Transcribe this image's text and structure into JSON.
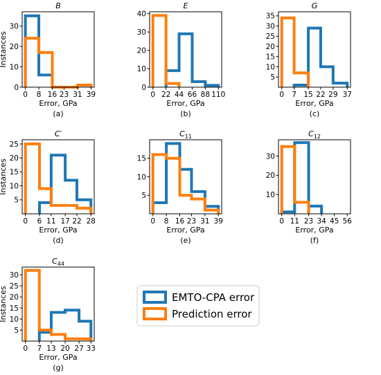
{
  "legend": {
    "placement": "lower-right",
    "entries": [
      {
        "label": "EMTO-CPA error",
        "color": "#1f77b4"
      },
      {
        "label": "Prediction error",
        "color": "#ff7f0e"
      }
    ]
  },
  "chart_data": [
    {
      "type": "histogram",
      "panel": "(a)",
      "title": "B",
      "xlabel": "Error, GPa",
      "ylabel": "Instances",
      "xticks": [
        0,
        8,
        16,
        23,
        31,
        39
      ],
      "yticks": [
        0,
        10,
        20,
        30
      ],
      "xlim": [
        -1.9,
        40.9
      ],
      "ylim": [
        0,
        37
      ],
      "series": [
        {
          "name": "EMTO-CPA error",
          "color": "#1f77b4",
          "bins": [
            {
              "x0": 0,
              "x1": 8,
              "count": 35
            },
            {
              "x0": 8,
              "x1": 16,
              "count": 6
            },
            {
              "x0": 16,
              "x1": 23,
              "count": 0
            },
            {
              "x0": 23,
              "x1": 31,
              "count": 0
            },
            {
              "x0": 31,
              "x1": 39,
              "count": 0
            }
          ]
        },
        {
          "name": "Prediction error",
          "color": "#ff7f0e",
          "bins": [
            {
              "x0": 0,
              "x1": 8,
              "count": 24
            },
            {
              "x0": 8,
              "x1": 16,
              "count": 17
            },
            {
              "x0": 16,
              "x1": 23,
              "count": 0
            },
            {
              "x0": 23,
              "x1": 31,
              "count": 0
            },
            {
              "x0": 31,
              "x1": 39,
              "count": 1
            }
          ]
        }
      ]
    },
    {
      "type": "histogram",
      "panel": "(b)",
      "title": "E",
      "xlabel": "Error, GPa",
      "ylabel": "",
      "xticks": [
        0,
        22,
        44,
        66,
        88,
        110
      ],
      "yticks": [
        0,
        10,
        20,
        30,
        40
      ],
      "xlim": [
        -5.5,
        115.5
      ],
      "ylim": [
        0,
        41
      ],
      "series": [
        {
          "name": "EMTO-CPA error",
          "color": "#1f77b4",
          "bins": [
            {
              "x0": 0,
              "x1": 22,
              "count": 0
            },
            {
              "x0": 22,
              "x1": 44,
              "count": 9
            },
            {
              "x0": 44,
              "x1": 66,
              "count": 29
            },
            {
              "x0": 66,
              "x1": 88,
              "count": 3
            },
            {
              "x0": 88,
              "x1": 110,
              "count": 1
            }
          ]
        },
        {
          "name": "Prediction error",
          "color": "#ff7f0e",
          "bins": [
            {
              "x0": 0,
              "x1": 22,
              "count": 39
            },
            {
              "x0": 22,
              "x1": 44,
              "count": 2
            },
            {
              "x0": 44,
              "x1": 66,
              "count": 0
            },
            {
              "x0": 66,
              "x1": 88,
              "count": 0
            },
            {
              "x0": 88,
              "x1": 110,
              "count": 0
            }
          ]
        }
      ]
    },
    {
      "type": "histogram",
      "panel": "(c)",
      "title": "G",
      "xlabel": "Error, GPa",
      "ylabel": "",
      "xticks": [
        0,
        7,
        15,
        22,
        29,
        37
      ],
      "yticks": [
        5,
        10,
        15,
        20,
        25,
        30,
        35
      ],
      "xlim": [
        -1.85,
        38.85
      ],
      "ylim": [
        0,
        37
      ],
      "series": [
        {
          "name": "EMTO-CPA error",
          "color": "#1f77b4",
          "bins": [
            {
              "x0": 0,
              "x1": 7,
              "count": 0
            },
            {
              "x0": 7,
              "x1": 15,
              "count": 1
            },
            {
              "x0": 15,
              "x1": 22,
              "count": 29
            },
            {
              "x0": 22,
              "x1": 29,
              "count": 10
            },
            {
              "x0": 29,
              "x1": 37,
              "count": 2
            }
          ]
        },
        {
          "name": "Prediction error",
          "color": "#ff7f0e",
          "bins": [
            {
              "x0": 0,
              "x1": 7,
              "count": 34
            },
            {
              "x0": 7,
              "x1": 15,
              "count": 7
            },
            {
              "x0": 15,
              "x1": 22,
              "count": 0
            },
            {
              "x0": 22,
              "x1": 29,
              "count": 0
            },
            {
              "x0": 29,
              "x1": 37,
              "count": 0
            }
          ]
        }
      ]
    },
    {
      "type": "histogram",
      "panel": "(d)",
      "title": "C′",
      "xlabel": "Error, GPa",
      "ylabel": "Instances",
      "xticks": [
        0,
        6,
        11,
        17,
        22,
        28
      ],
      "yticks": [
        5,
        10,
        15,
        20,
        25
      ],
      "xlim": [
        -1.4,
        29.4
      ],
      "ylim": [
        0,
        26.5
      ],
      "series": [
        {
          "name": "EMTO-CPA error",
          "color": "#1f77b4",
          "bins": [
            {
              "x0": 0,
              "x1": 6,
              "count": 0
            },
            {
              "x0": 6,
              "x1": 11,
              "count": 4
            },
            {
              "x0": 11,
              "x1": 17,
              "count": 21
            },
            {
              "x0": 17,
              "x1": 22,
              "count": 12
            },
            {
              "x0": 22,
              "x1": 28,
              "count": 5
            }
          ]
        },
        {
          "name": "Prediction error",
          "color": "#ff7f0e",
          "bins": [
            {
              "x0": 0,
              "x1": 6,
              "count": 25
            },
            {
              "x0": 6,
              "x1": 11,
              "count": 9
            },
            {
              "x0": 11,
              "x1": 17,
              "count": 3
            },
            {
              "x0": 17,
              "x1": 22,
              "count": 3
            },
            {
              "x0": 22,
              "x1": 28,
              "count": 2
            }
          ]
        }
      ]
    },
    {
      "type": "histogram",
      "panel": "(e)",
      "title": "C11",
      "xlabel": "Error, GPa",
      "ylabel": "",
      "xticks": [
        0,
        8,
        16,
        23,
        31,
        39
      ],
      "yticks": [
        5,
        10,
        15
      ],
      "xlim": [
        -1.95,
        40.95
      ],
      "ylim": [
        0,
        20
      ],
      "series": [
        {
          "name": "EMTO-CPA error",
          "color": "#1f77b4",
          "bins": [
            {
              "x0": 0,
              "x1": 8,
              "count": 3
            },
            {
              "x0": 8,
              "x1": 16,
              "count": 19
            },
            {
              "x0": 16,
              "x1": 23,
              "count": 12
            },
            {
              "x0": 23,
              "x1": 31,
              "count": 6
            },
            {
              "x0": 31,
              "x1": 39,
              "count": 2
            }
          ]
        },
        {
          "name": "Prediction error",
          "color": "#ff7f0e",
          "bins": [
            {
              "x0": 0,
              "x1": 8,
              "count": 16
            },
            {
              "x0": 8,
              "x1": 16,
              "count": 15
            },
            {
              "x0": 16,
              "x1": 23,
              "count": 5
            },
            {
              "x0": 23,
              "x1": 31,
              "count": 4
            },
            {
              "x0": 31,
              "x1": 39,
              "count": 1
            }
          ]
        }
      ]
    },
    {
      "type": "histogram",
      "panel": "(f)",
      "title": "C12",
      "xlabel": "Error, GPa",
      "ylabel": "",
      "xticks": [
        0,
        11,
        23,
        34,
        45,
        56
      ],
      "yticks": [
        10,
        20,
        30
      ],
      "xlim": [
        -2.8,
        58.8
      ],
      "ylim": [
        0,
        38.5
      ],
      "series": [
        {
          "name": "EMTO-CPA error",
          "color": "#1f77b4",
          "bins": [
            {
              "x0": 0,
              "x1": 11,
              "count": 1
            },
            {
              "x0": 11,
              "x1": 23,
              "count": 37
            },
            {
              "x0": 23,
              "x1": 34,
              "count": 4
            },
            {
              "x0": 34,
              "x1": 45,
              "count": 0
            },
            {
              "x0": 45,
              "x1": 56,
              "count": 0
            }
          ]
        },
        {
          "name": "Prediction error",
          "color": "#ff7f0e",
          "bins": [
            {
              "x0": 0,
              "x1": 11,
              "count": 35
            },
            {
              "x0": 11,
              "x1": 23,
              "count": 6
            },
            {
              "x0": 23,
              "x1": 34,
              "count": 0
            },
            {
              "x0": 34,
              "x1": 45,
              "count": 0
            },
            {
              "x0": 45,
              "x1": 56,
              "count": 0
            }
          ]
        }
      ]
    },
    {
      "type": "histogram",
      "panel": "(g)",
      "title": "C44",
      "xlabel": "Error, GPa",
      "ylabel": "Instances",
      "xticks": [
        0,
        7,
        13,
        20,
        27,
        33
      ],
      "yticks": [
        5,
        10,
        15,
        20,
        25,
        30
      ],
      "xlim": [
        -1.65,
        34.65
      ],
      "ylim": [
        0,
        33.5
      ],
      "series": [
        {
          "name": "EMTO-CPA error",
          "color": "#1f77b4",
          "bins": [
            {
              "x0": 0,
              "x1": 7,
              "count": 0
            },
            {
              "x0": 7,
              "x1": 13,
              "count": 4
            },
            {
              "x0": 13,
              "x1": 20,
              "count": 13
            },
            {
              "x0": 20,
              "x1": 27,
              "count": 14
            },
            {
              "x0": 27,
              "x1": 33,
              "count": 9
            }
          ]
        },
        {
          "name": "Prediction error",
          "color": "#ff7f0e",
          "bins": [
            {
              "x0": 0,
              "x1": 7,
              "count": 32
            },
            {
              "x0": 7,
              "x1": 13,
              "count": 5
            },
            {
              "x0": 13,
              "x1": 20,
              "count": 3
            },
            {
              "x0": 20,
              "x1": 27,
              "count": 1
            },
            {
              "x0": 27,
              "x1": 33,
              "count": 1
            }
          ]
        }
      ]
    }
  ]
}
